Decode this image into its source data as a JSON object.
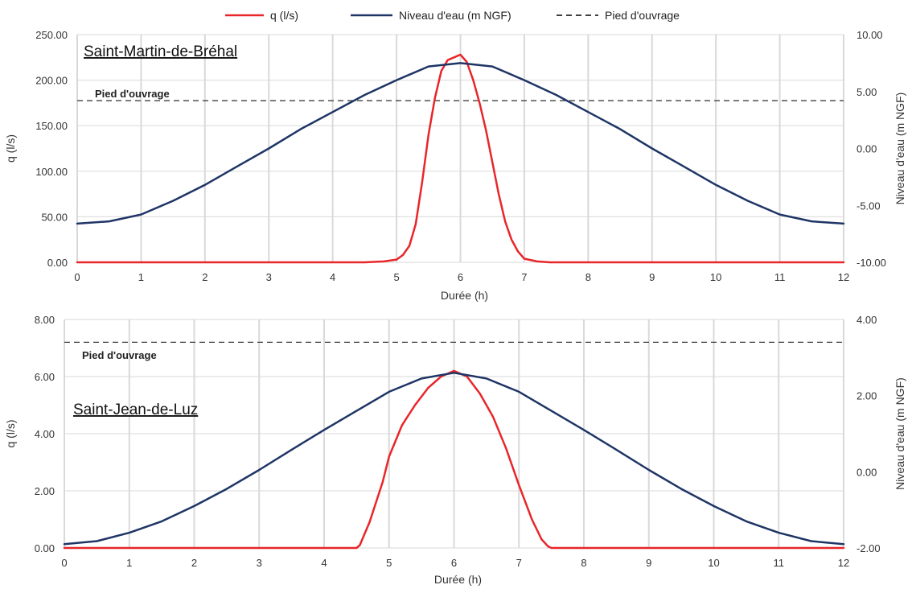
{
  "legend": [
    {
      "label": "q (l/s)",
      "color": "#e8262a",
      "style": "solid"
    },
    {
      "label": "Niveau d'eau (m NGF)",
      "color": "#1f3566",
      "style": "solid"
    },
    {
      "label": "Pied d'ouvrage",
      "color": "#404040",
      "style": "dashed"
    }
  ],
  "chart_data": [
    {
      "type": "line",
      "site": "Saint-Martin-de-Bréhal",
      "xlabel": "Durée (h)",
      "ylabel_left": "q (l/s)",
      "ylabel_right": "Niveau d'eau (m NGF)",
      "x_ticks": [
        "0",
        "1",
        "2",
        "3",
        "4",
        "5",
        "6",
        "7",
        "8",
        "9",
        "10",
        "11",
        "12"
      ],
      "y_left_ticks": [
        "0.00",
        "50.00",
        "100.00",
        "150.00",
        "200.00",
        "250.00"
      ],
      "y_right_ticks": [
        "-10.00",
        "-5.00",
        "0.00",
        "5.00",
        "10.00"
      ],
      "xlim": [
        0,
        12
      ],
      "ylim_left": [
        0,
        250
      ],
      "ylim_right": [
        -10,
        10
      ],
      "grid": true,
      "pied_label": "Pied d'ouvrage",
      "pied_level": 4.2,
      "series": [
        {
          "name": "q (l/s)",
          "axis": "left",
          "color": "#e8262a",
          "x": [
            0,
            4.5,
            4.8,
            5.0,
            5.1,
            5.2,
            5.3,
            5.4,
            5.5,
            5.6,
            5.7,
            5.8,
            5.9,
            6.0,
            6.1,
            6.2,
            6.3,
            6.4,
            6.5,
            6.6,
            6.7,
            6.8,
            6.9,
            7.0,
            7.2,
            7.4,
            8,
            12
          ],
          "y": [
            0,
            0,
            1,
            3,
            8,
            18,
            42,
            88,
            140,
            180,
            210,
            222,
            225,
            228,
            220,
            200,
            175,
            145,
            110,
            75,
            45,
            25,
            12,
            4,
            1,
            0,
            0,
            0
          ]
        },
        {
          "name": "Niveau d'eau (m NGF)",
          "axis": "right",
          "color": "#1f3566",
          "x": [
            0,
            0.5,
            1,
            1.5,
            2,
            2.5,
            3,
            3.5,
            4,
            4.5,
            5,
            5.5,
            6,
            6.5,
            7,
            7.5,
            8,
            8.5,
            9,
            9.5,
            10,
            10.5,
            11,
            11.5,
            12
          ],
          "y": [
            -6.6,
            -6.4,
            -5.8,
            -4.6,
            -3.2,
            -1.6,
            0.0,
            1.7,
            3.2,
            4.7,
            6.0,
            7.2,
            7.5,
            7.2,
            6.0,
            4.7,
            3.2,
            1.7,
            0.0,
            -1.6,
            -3.2,
            -4.6,
            -5.8,
            -6.4,
            -6.6
          ]
        }
      ]
    },
    {
      "type": "line",
      "site": "Saint-Jean-de-Luz",
      "xlabel": "Durée (h)",
      "ylabel_left": "q (l/s)",
      "ylabel_right": "Niveau d'eau (m NGF)",
      "x_ticks": [
        "0",
        "1",
        "2",
        "3",
        "4",
        "5",
        "6",
        "7",
        "8",
        "9",
        "10",
        "11",
        "12"
      ],
      "y_left_ticks": [
        "0.00",
        "2.00",
        "4.00",
        "6.00",
        "8.00"
      ],
      "y_right_ticks": [
        "-2.00",
        "0.00",
        "2.00",
        "4.00"
      ],
      "xlim": [
        0,
        12
      ],
      "ylim_left": [
        0,
        8
      ],
      "ylim_right": [
        -2,
        4
      ],
      "grid": true,
      "pied_label": "Pied d'ouvrage",
      "pied_level": 3.4,
      "series": [
        {
          "name": "q (l/s)",
          "axis": "left",
          "color": "#e8262a",
          "x": [
            0,
            4.5,
            4.55,
            4.7,
            4.9,
            5.0,
            5.2,
            5.4,
            5.6,
            5.8,
            5.9,
            6.0,
            6.1,
            6.2,
            6.4,
            6.6,
            6.8,
            7.0,
            7.2,
            7.35,
            7.45,
            7.5,
            12
          ],
          "y": [
            0,
            0,
            0.1,
            0.9,
            2.3,
            3.2,
            4.3,
            5.0,
            5.6,
            6.0,
            6.1,
            6.2,
            6.1,
            6.0,
            5.4,
            4.6,
            3.5,
            2.2,
            1.0,
            0.3,
            0.05,
            0,
            0
          ]
        },
        {
          "name": "Niveau d'eau (m NGF)",
          "axis": "right",
          "color": "#1f3566",
          "x": [
            0,
            0.5,
            1,
            1.5,
            2,
            2.5,
            3,
            3.5,
            4,
            4.5,
            5,
            5.5,
            6,
            6.5,
            7,
            7.5,
            8,
            8.5,
            9,
            9.5,
            10,
            10.5,
            11,
            11.5,
            12
          ],
          "y": [
            -1.9,
            -1.82,
            -1.6,
            -1.3,
            -0.9,
            -0.45,
            0.05,
            0.58,
            1.1,
            1.6,
            2.1,
            2.45,
            2.6,
            2.45,
            2.1,
            1.6,
            1.1,
            0.58,
            0.05,
            -0.45,
            -0.9,
            -1.3,
            -1.6,
            -1.82,
            -1.9
          ]
        }
      ]
    }
  ]
}
